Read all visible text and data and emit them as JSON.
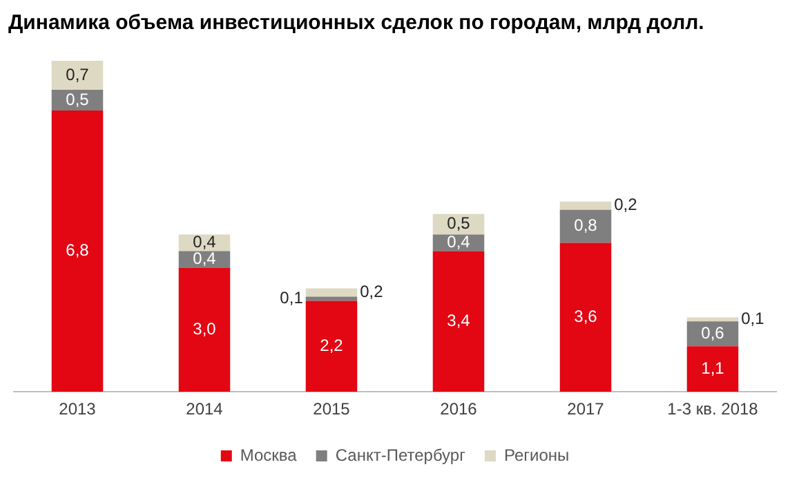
{
  "chart_data": {
    "type": "bar",
    "stacked": true,
    "title": "Динамика объема инвестиционных сделок по городам, млрд долл.",
    "categories": [
      "2013",
      "2014",
      "2015",
      "2016",
      "2017",
      "1-3 кв. 2018"
    ],
    "series": [
      {
        "name": "Москва",
        "color": "#e30613",
        "values": [
          6.8,
          3.0,
          2.2,
          3.4,
          3.6,
          1.1
        ],
        "value_labels": [
          "6,8",
          "3,0",
          "2,2",
          "3,4",
          "3,6",
          "1,1"
        ]
      },
      {
        "name": "Санкт-Петербург",
        "color": "#7f7f7f",
        "values": [
          0.5,
          0.4,
          0.1,
          0.4,
          0.8,
          0.6
        ],
        "value_labels": [
          "0,5",
          "0,4",
          "0,1",
          "0,4",
          "0,8",
          "0,6"
        ]
      },
      {
        "name": "Регионы",
        "color": "#ddd9c3",
        "values": [
          0.7,
          0.4,
          0.2,
          0.5,
          0.2,
          0.1
        ],
        "value_labels": [
          "0,7",
          "0,4",
          "0,2",
          "0,5",
          "0,2",
          "0,1"
        ]
      }
    ],
    "legend": "bottom",
    "grid": false,
    "tick_labels": "x"
  }
}
